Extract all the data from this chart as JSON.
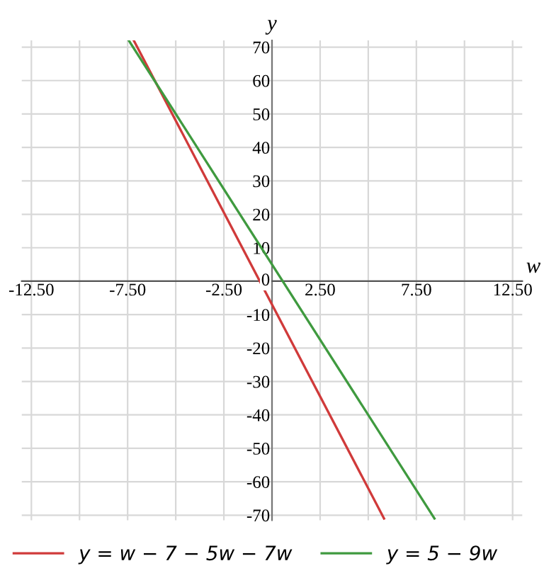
{
  "chart_data": {
    "type": "line",
    "xlabel": "w",
    "ylabel": "y",
    "xlim": [
      -13,
      13
    ],
    "ylim": [
      -71.5,
      72
    ],
    "xticks": [
      {
        "value": -12.5,
        "label": "-12.50"
      },
      {
        "value": -10,
        "label": null
      },
      {
        "value": -7.5,
        "label": "-7.50"
      },
      {
        "value": -5,
        "label": null
      },
      {
        "value": -2.5,
        "label": "-2.50"
      },
      {
        "value": 0,
        "label": null
      },
      {
        "value": 2.5,
        "label": "2.50"
      },
      {
        "value": 5,
        "label": null
      },
      {
        "value": 7.5,
        "label": "7.50"
      },
      {
        "value": 10,
        "label": null
      },
      {
        "value": 12.5,
        "label": "12.50"
      }
    ],
    "yticks": [
      -70,
      -60,
      -50,
      -40,
      -30,
      -20,
      -10,
      0,
      10,
      20,
      30,
      40,
      50,
      60,
      70
    ],
    "grid": true,
    "legend": "bottom",
    "line_style": "solid",
    "marker": "none",
    "series": [
      {
        "name": "y = w − 7 − 5w − 7w",
        "color": "#d03a3a",
        "x": [
          -7.18,
          5.82
        ],
        "values": [
          72,
          -71
        ]
      },
      {
        "name": "y = 5 − 9w",
        "color": "#3f9a3f",
        "x": [
          -7.44,
          8.44
        ],
        "values": [
          72,
          -71
        ]
      }
    ]
  }
}
